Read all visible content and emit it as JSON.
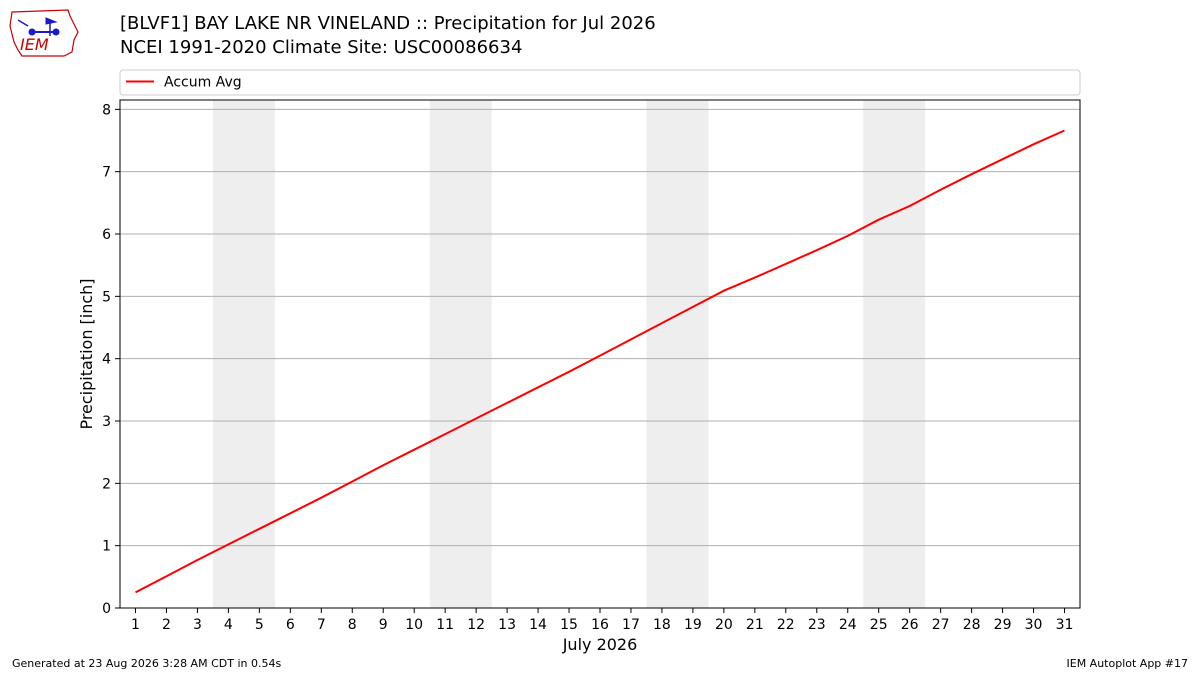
{
  "header": {
    "logo_text": "IEM",
    "title_line1": "[BLVF1] BAY LAKE NR VINELAND :: Precipitation for Jul 2026",
    "title_line2": "NCEI 1991-2020 Climate Site: USC00086634"
  },
  "footer": {
    "generated": "Generated at 23 Aug 2026 3:28 AM CDT in 0.54s",
    "app": "IEM Autoplot App #17"
  },
  "colors": {
    "line": "#ff0000",
    "weekend_band": "#eeeeee",
    "grid": "#b0b0b0",
    "logo": "#cc0000",
    "logo_mark": "#1a1acc"
  },
  "chart_data": {
    "type": "line",
    "title": "",
    "xlabel": "July 2026",
    "ylabel": "Precipitation [inch]",
    "x": [
      1,
      2,
      3,
      4,
      5,
      6,
      7,
      8,
      9,
      10,
      11,
      12,
      13,
      14,
      15,
      16,
      17,
      18,
      19,
      20,
      21,
      22,
      23,
      24,
      25,
      26,
      27,
      28,
      29,
      30,
      31
    ],
    "xlim": [
      0.5,
      31.5
    ],
    "ylim": [
      0,
      8.15
    ],
    "yticks": [
      0,
      1,
      2,
      3,
      4,
      5,
      6,
      7,
      8
    ],
    "grid": "horizontal",
    "legend": "top, above plot",
    "weekend_bands": [
      [
        3.5,
        5.5
      ],
      [
        10.5,
        12.5
      ],
      [
        17.5,
        19.5
      ],
      [
        24.5,
        26.5
      ]
    ],
    "series": [
      {
        "name": "Accum Avg",
        "values": [
          0.25,
          0.51,
          0.77,
          1.02,
          1.27,
          1.52,
          1.77,
          2.03,
          2.29,
          2.54,
          2.79,
          3.04,
          3.29,
          3.54,
          3.79,
          4.05,
          4.31,
          4.57,
          4.83,
          5.09,
          5.3,
          5.52,
          5.74,
          5.97,
          6.23,
          6.45,
          6.71,
          6.96,
          7.2,
          7.44,
          7.66
        ]
      }
    ]
  }
}
